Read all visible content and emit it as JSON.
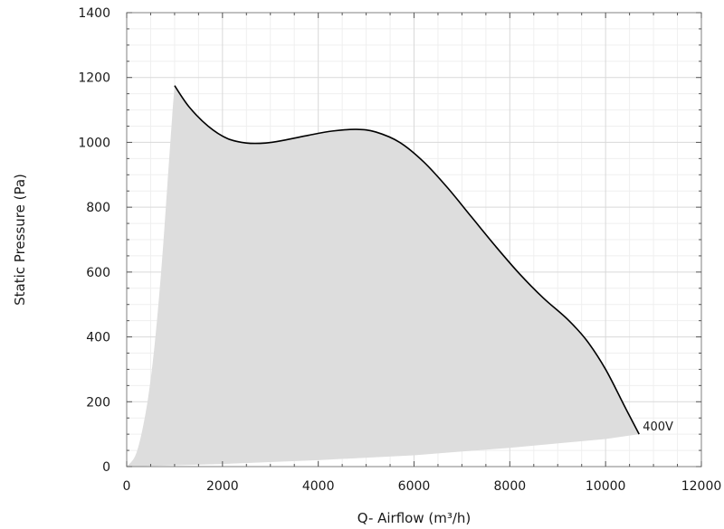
{
  "chart_data": {
    "type": "area",
    "title": "",
    "xlabel": "Q- Airflow (m³/h)",
    "ylabel": "Static Pressure (Pa)",
    "xlim": [
      0,
      12000
    ],
    "ylim": [
      0,
      1400
    ],
    "xticks": [
      0,
      2000,
      4000,
      6000,
      8000,
      10000,
      12000
    ],
    "yticks": [
      0,
      200,
      400,
      600,
      800,
      1000,
      1200,
      1400
    ],
    "grid": true,
    "colors": {
      "fill": "#dddddd",
      "curve": "#000000",
      "grid": "#d9d9d9",
      "axis": "#808080"
    },
    "series": [
      {
        "name": "400V",
        "upper_curve": {
          "x": [
            1000,
            1300,
            1700,
            2100,
            2500,
            2900,
            3300,
            3800,
            4300,
            4800,
            5200,
            5700,
            6200,
            6700,
            7200,
            7700,
            8200,
            8700,
            9200,
            9600,
            10000,
            10400,
            10700
          ],
          "y": [
            1175,
            1110,
            1050,
            1012,
            998,
            998,
            1007,
            1022,
            1035,
            1040,
            1032,
            1000,
            940,
            860,
            770,
            680,
            595,
            520,
            455,
            390,
            300,
            185,
            100
          ]
        },
        "left_boundary": {
          "x": [
            0,
            150,
            250,
            350,
            450,
            550,
            650,
            750,
            850,
            950,
            1000
          ],
          "y": [
            0,
            25,
            65,
            130,
            215,
            330,
            480,
            660,
            870,
            1080,
            1175
          ]
        },
        "lower_boundary": {
          "x": [
            0,
            2000,
            4000,
            6000,
            8000,
            10000,
            10700
          ],
          "y": [
            0,
            8,
            20,
            35,
            58,
            85,
            100
          ]
        }
      }
    ]
  }
}
